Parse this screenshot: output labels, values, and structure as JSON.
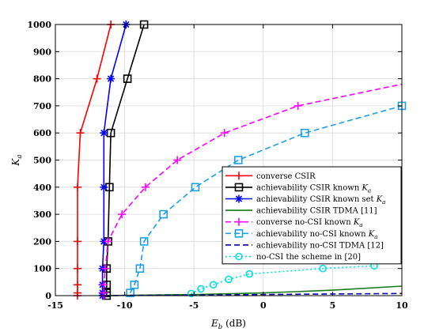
{
  "chart_data": {
    "type": "line",
    "title": "",
    "xlabel": "E_b (dB)",
    "ylabel": "K_a",
    "xlim": [
      -15,
      10
    ],
    "ylim": [
      0,
      1000
    ],
    "xticks": [
      "-15",
      "-10",
      "-5",
      "0",
      "5",
      "10"
    ],
    "yticks": [
      "0",
      "100",
      "200",
      "300",
      "400",
      "500",
      "600",
      "700",
      "800",
      "900",
      "1000"
    ],
    "grid": true,
    "legend_position": "bottom-right",
    "series": [
      {
        "name": "converse CSIR",
        "color": "#ff0000",
        "dash": "solid",
        "marker": "plus",
        "points": [
          [
            -13.4,
            0
          ],
          [
            -13.4,
            10
          ],
          [
            -13.4,
            40
          ],
          [
            -13.4,
            100
          ],
          [
            -13.4,
            200
          ],
          [
            -13.4,
            400
          ],
          [
            -13.2,
            600
          ],
          [
            -12.0,
            800
          ],
          [
            -11.0,
            1000
          ]
        ],
        "marker_points": [
          [
            -13.4,
            0
          ],
          [
            -13.4,
            10
          ],
          [
            -13.4,
            40
          ],
          [
            -13.4,
            100
          ],
          [
            -13.4,
            200
          ],
          [
            -13.4,
            400
          ],
          [
            -13.2,
            600
          ],
          [
            -12.0,
            800
          ],
          [
            -11.0,
            1000
          ]
        ]
      },
      {
        "name": "achievability CSIR known K_a",
        "color": "#000000",
        "dash": "solid",
        "marker": "square",
        "points": [
          [
            -11.3,
            0
          ],
          [
            -11.3,
            10
          ],
          [
            -11.3,
            40
          ],
          [
            -11.3,
            100
          ],
          [
            -11.2,
            200
          ],
          [
            -11.1,
            400
          ],
          [
            -11.0,
            600
          ],
          [
            -9.8,
            800
          ],
          [
            -8.6,
            1000
          ]
        ],
        "marker_points": [
          [
            -11.3,
            0
          ],
          [
            -11.3,
            10
          ],
          [
            -11.3,
            40
          ],
          [
            -11.3,
            100
          ],
          [
            -11.2,
            200
          ],
          [
            -11.1,
            400
          ],
          [
            -11.0,
            600
          ],
          [
            -9.8,
            800
          ],
          [
            -8.6,
            1000
          ]
        ]
      },
      {
        "name": "achievability CSIR known set K_a",
        "color": "#0000ff",
        "dash": "solid",
        "marker": "asterisk",
        "points": [
          [
            -11.6,
            0
          ],
          [
            -11.6,
            10
          ],
          [
            -11.6,
            40
          ],
          [
            -11.6,
            100
          ],
          [
            -11.5,
            200
          ],
          [
            -11.5,
            400
          ],
          [
            -11.5,
            600
          ],
          [
            -11.0,
            800
          ],
          [
            -9.9,
            1000
          ]
        ],
        "marker_points": [
          [
            -11.6,
            0
          ],
          [
            -11.6,
            10
          ],
          [
            -11.6,
            40
          ],
          [
            -11.6,
            100
          ],
          [
            -11.5,
            200
          ],
          [
            -11.5,
            400
          ],
          [
            -11.5,
            600
          ],
          [
            -11.0,
            800
          ],
          [
            -9.9,
            1000
          ]
        ]
      },
      {
        "name": "achievability CSIR TDMA [11]",
        "color": "#1a7a1a",
        "dash": "solid",
        "marker": "none",
        "points": [
          [
            -11.5,
            0
          ],
          [
            -10,
            1
          ],
          [
            -5,
            4
          ],
          [
            0,
            10
          ],
          [
            5,
            20
          ],
          [
            10,
            35
          ]
        ],
        "marker_points": []
      },
      {
        "name": "converse no-CSI known K_a",
        "color": "#ff00ff",
        "dash": "dashed",
        "marker": "plus",
        "points": [
          [
            -11.5,
            0
          ],
          [
            -11.5,
            10
          ],
          [
            -11.5,
            40
          ],
          [
            -11.4,
            100
          ],
          [
            -11.2,
            200
          ],
          [
            -10.2,
            300
          ],
          [
            -8.5,
            400
          ],
          [
            -6.2,
            500
          ],
          [
            -2.8,
            600
          ],
          [
            2.5,
            700
          ],
          [
            10,
            780
          ]
        ],
        "marker_points": [
          [
            -11.5,
            0
          ],
          [
            -11.5,
            10
          ],
          [
            -11.5,
            40
          ],
          [
            -11.4,
            100
          ],
          [
            -11.2,
            200
          ],
          [
            -10.2,
            300
          ],
          [
            -8.5,
            400
          ],
          [
            -6.2,
            500
          ],
          [
            -2.8,
            600
          ],
          [
            2.5,
            700
          ]
        ]
      },
      {
        "name": "achievability no-CSI known K_a",
        "color": "#1ea0e6",
        "dash": "dashed",
        "marker": "square",
        "points": [
          [
            -9.6,
            10
          ],
          [
            -9.3,
            40
          ],
          [
            -8.9,
            100
          ],
          [
            -8.6,
            200
          ],
          [
            -7.2,
            300
          ],
          [
            -4.9,
            400
          ],
          [
            -1.8,
            500
          ],
          [
            3.0,
            600
          ],
          [
            10.0,
            700
          ]
        ],
        "marker_points": [
          [
            -9.6,
            10
          ],
          [
            -9.3,
            40
          ],
          [
            -8.9,
            100
          ],
          [
            -8.6,
            200
          ],
          [
            -7.2,
            300
          ],
          [
            -4.9,
            400
          ],
          [
            -1.8,
            500
          ],
          [
            3.0,
            600
          ],
          [
            10.0,
            700
          ]
        ]
      },
      {
        "name": "achievability no-CSI TDMA [12]",
        "color": "#0000b0",
        "dash": "dashed",
        "marker": "none",
        "points": [
          [
            -11.5,
            0
          ],
          [
            -10,
            1
          ],
          [
            -5,
            2
          ],
          [
            0,
            4
          ],
          [
            5,
            6
          ],
          [
            10,
            8
          ]
        ],
        "marker_points": []
      },
      {
        "name": "no-CSI the scheme in [20]",
        "color": "#00e0e0",
        "dash": "dotted",
        "marker": "circle",
        "points": [
          [
            -5.2,
            8
          ],
          [
            -4.5,
            25
          ],
          [
            -3.6,
            40
          ],
          [
            -2.5,
            60
          ],
          [
            -1.0,
            80
          ],
          [
            4.3,
            100
          ],
          [
            8.0,
            110
          ]
        ],
        "marker_points": [
          [
            -5.2,
            8
          ],
          [
            -4.5,
            25
          ],
          [
            -3.6,
            40
          ],
          [
            -2.5,
            60
          ],
          [
            -1.0,
            80
          ],
          [
            4.3,
            100
          ],
          [
            8.0,
            110
          ]
        ]
      }
    ]
  }
}
